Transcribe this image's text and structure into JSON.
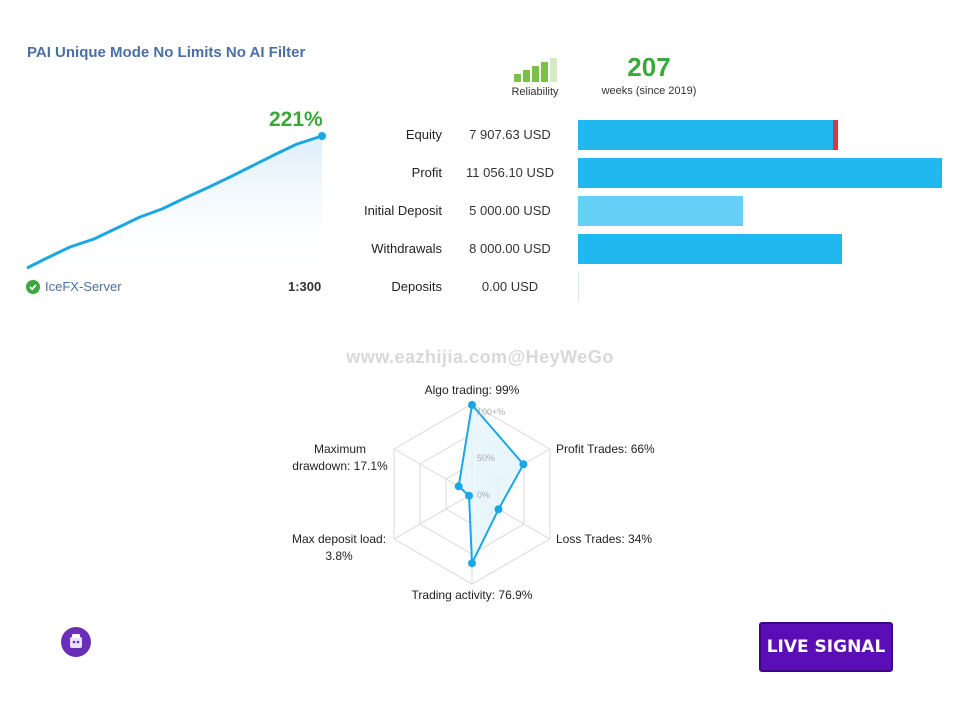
{
  "header": {
    "title": "PAI Unique Mode No Limits No AI Filter"
  },
  "growth": {
    "percent": "221%",
    "server": "IceFX-Server",
    "leverage": "1:300",
    "server_icon": "check-icon"
  },
  "reliability": {
    "label": "Reliability",
    "level": 4,
    "max": 5,
    "colors": {
      "on": "#7cc242",
      "off": "#d6ebc4"
    }
  },
  "weeks": {
    "value": "207",
    "label": "weeks (since 2019)"
  },
  "stats": [
    {
      "label": "Equity",
      "value": "7 907.63 USD",
      "ratio": 0.715,
      "color": "#21b7ef",
      "marker": "#d9363e"
    },
    {
      "label": "Profit",
      "value": "11 056.10 USD",
      "ratio": 1.0,
      "color": "#21b7ef"
    },
    {
      "label": "Initial Deposit",
      "value": "5 000.00 USD",
      "ratio": 0.452,
      "color": "#66cff5"
    },
    {
      "label": "Withdrawals",
      "value": "8 000.00 USD",
      "ratio": 0.724,
      "color": "#21b7ef"
    },
    {
      "label": "Deposits",
      "value": "0.00 USD",
      "ratio": 0.0,
      "color": "#21b7ef"
    }
  ],
  "watermark": "www.eazhijia.com@HeyWeGo",
  "radar": {
    "ticks": [
      "100+%",
      "50%",
      "0%"
    ],
    "axes": [
      {
        "lines": [
          "Algo trading: 99%"
        ],
        "value": 99
      },
      {
        "lines": [
          "Profit Trades: 66%"
        ],
        "value": 66
      },
      {
        "lines": [
          "Loss Trades: 34%"
        ],
        "value": 34
      },
      {
        "lines": [
          "Trading activity: 76.9%"
        ],
        "value": 76.9
      },
      {
        "lines": [
          "Max deposit load:",
          "3.8%"
        ],
        "value": 3.8
      },
      {
        "lines": [
          "Maximum",
          "drawdown: 17.1%"
        ],
        "value": 17.1
      }
    ],
    "colors": {
      "line": "#1aa7e3",
      "fill": "#e3f4fb",
      "grid": "#d9d9d9"
    }
  },
  "live_signal": {
    "label": "LIVE SIGNAL"
  },
  "colors": {
    "accent": "#3aa83a",
    "title": "#4a6fa5",
    "button": "#5b0eb5",
    "chart_line": "#1aa7e3"
  }
}
